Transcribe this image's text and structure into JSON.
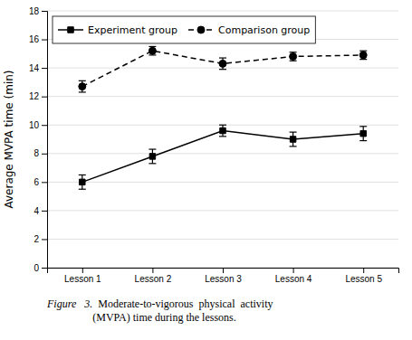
{
  "chart_data": {
    "type": "line",
    "categories": [
      "Lesson 1",
      "Lesson 2",
      "Lesson 3",
      "Lesson 4",
      "Lesson 5"
    ],
    "y_label": "Average MVPA time (min)",
    "ylim": [
      0,
      18
    ],
    "yticks": [
      0,
      2,
      4,
      6,
      8,
      10,
      12,
      14,
      16,
      18
    ],
    "grid": true,
    "legend": "upper-left",
    "series": [
      {
        "name": "Experiment group",
        "color": "#000000",
        "marker": "square",
        "line_style": "solid",
        "values": [
          6.0,
          7.8,
          9.6,
          9.0,
          9.4
        ],
        "errors": [
          0.5,
          0.5,
          0.4,
          0.5,
          0.5
        ]
      },
      {
        "name": "Comparison group",
        "color": "#000000",
        "marker": "circle",
        "line_style": "dashed",
        "values": [
          12.7,
          15.2,
          14.3,
          14.8,
          14.9
        ],
        "errors": [
          0.4,
          0.3,
          0.4,
          0.3,
          0.3
        ]
      }
    ],
    "annotations": [
      "Figure   3.",
      "  Moderate-to-vigorous  physical  activity\n(MVPA) time during the lessons."
    ]
  }
}
